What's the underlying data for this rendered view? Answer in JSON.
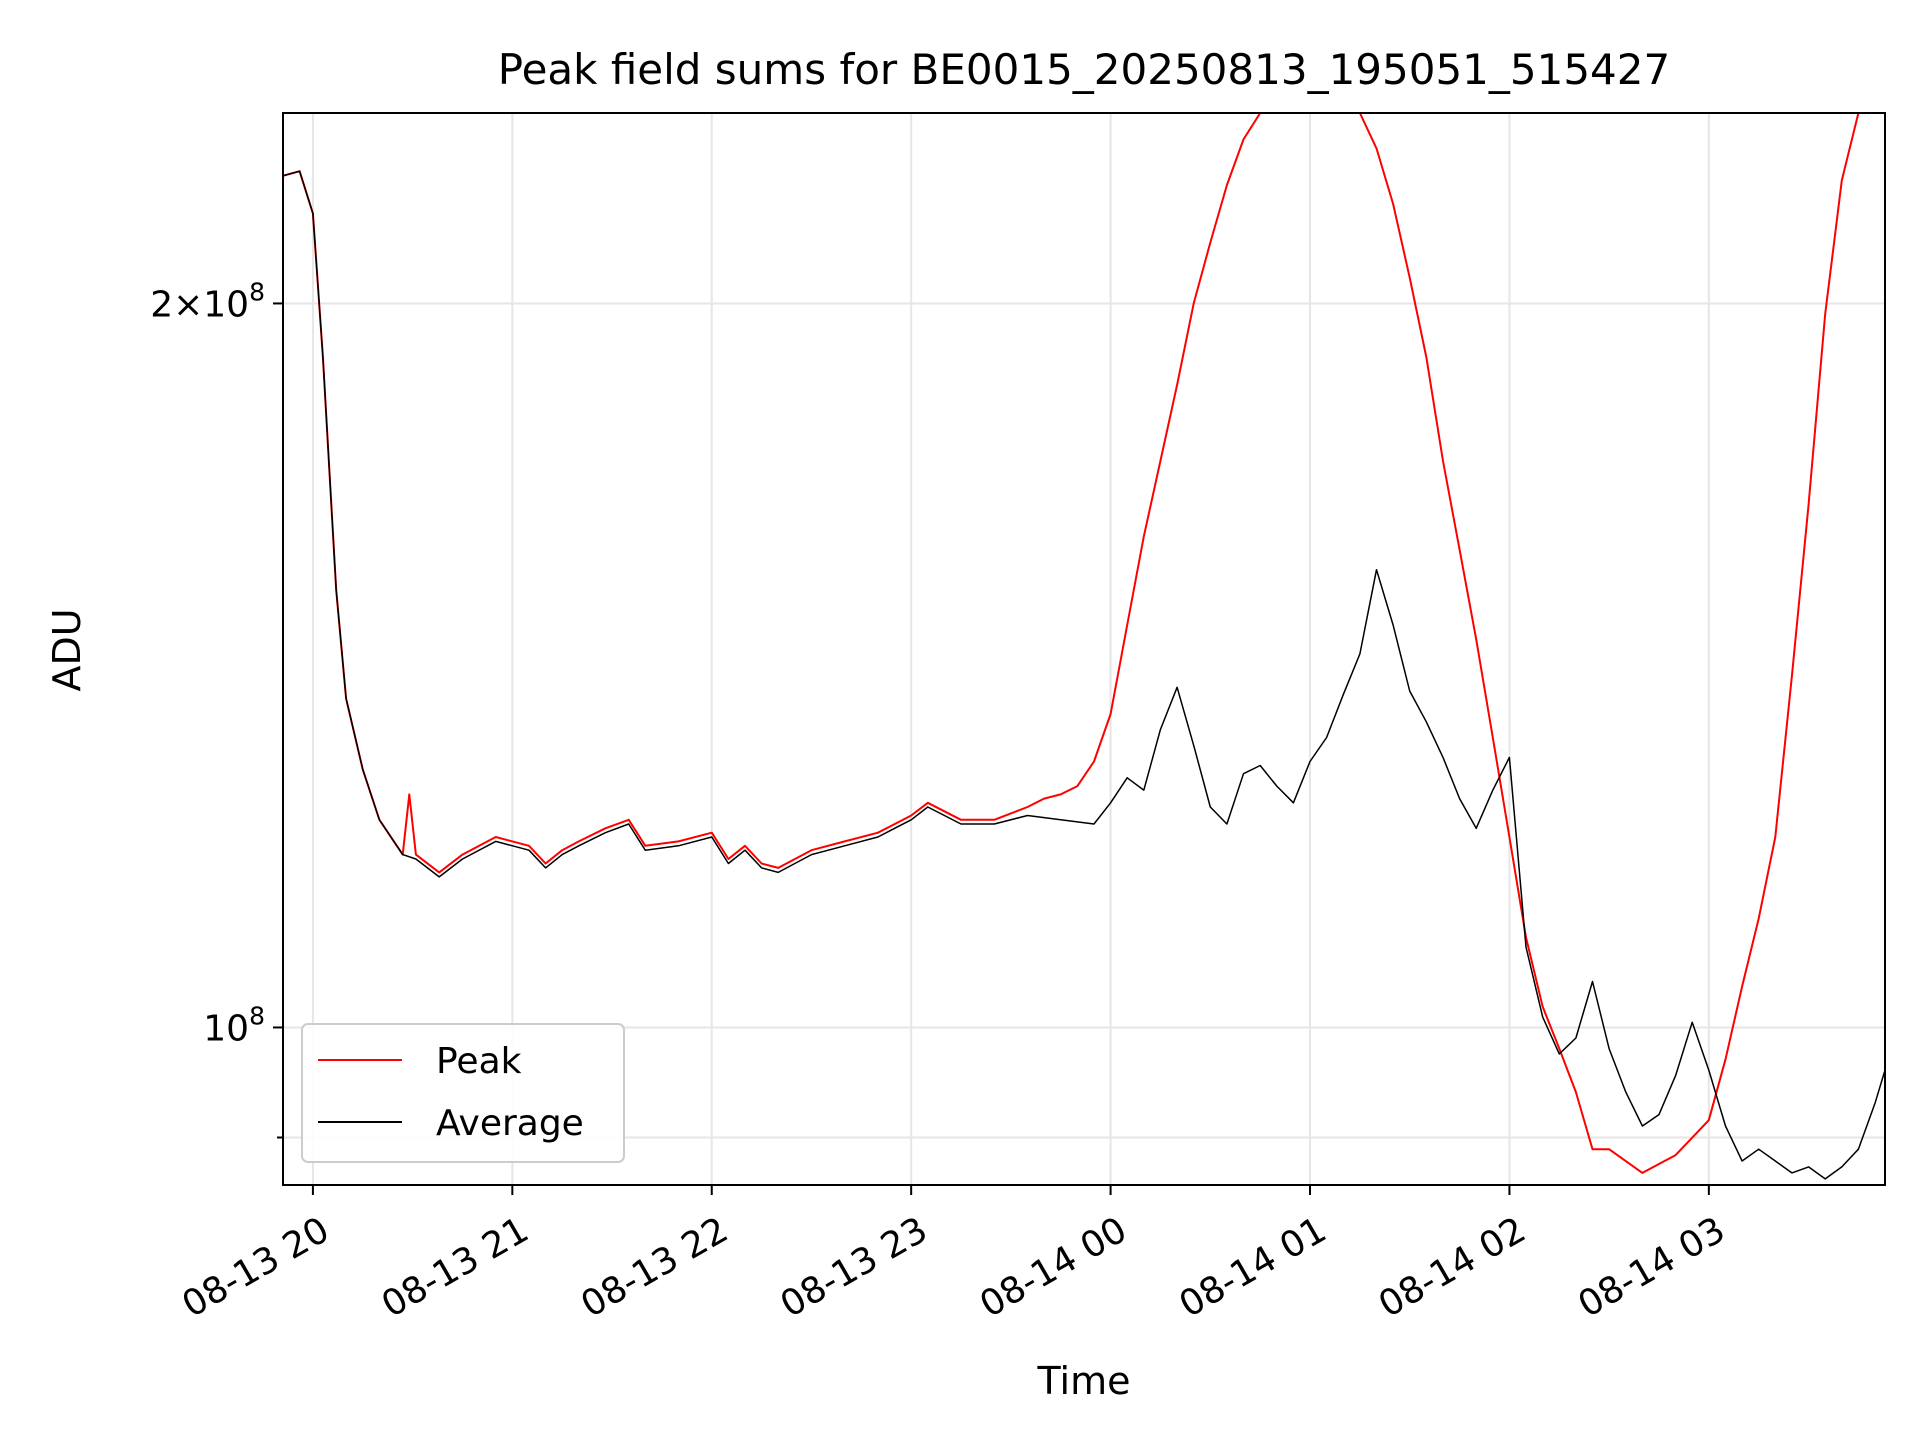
{
  "chart_data": {
    "type": "line",
    "title": "Peak field sums for BE0015_20250813_195051_515427",
    "xlabel": "Time",
    "ylabel": "ADU",
    "yscale": "log",
    "xlim": [
      "2025-08-13 19:51",
      "2025-08-14 03:53"
    ],
    "ylim": [
      86000000,
      240000000
    ],
    "grid": true,
    "legend_position": "lower-left",
    "x_ticks": [
      {
        "value": "2025-08-13 20:00",
        "label": "08-13 20"
      },
      {
        "value": "2025-08-13 21:00",
        "label": "08-13 21"
      },
      {
        "value": "2025-08-13 22:00",
        "label": "08-13 22"
      },
      {
        "value": "2025-08-13 23:00",
        "label": "08-13 23"
      },
      {
        "value": "2025-08-14 00:00",
        "label": "08-14 00"
      },
      {
        "value": "2025-08-14 01:00",
        "label": "08-14 01"
      },
      {
        "value": "2025-08-14 02:00",
        "label": "08-14 02"
      },
      {
        "value": "2025-08-14 03:00",
        "label": "08-14 03"
      }
    ],
    "y_ticks": [
      {
        "value": 100000000,
        "mantissa": "",
        "exponent": "8"
      },
      {
        "value": 200000000,
        "mantissa": "2",
        "exponent": "8"
      }
    ],
    "y_minor_ticks": [
      90000000
    ],
    "series": [
      {
        "name": "Peak",
        "color": "#ff0000",
        "points": [
          [
            "2025-08-13 19:51",
            226000000
          ],
          [
            "2025-08-13 19:56",
            227000000
          ],
          [
            "2025-08-13 20:00",
            218000000
          ],
          [
            "2025-08-13 20:03",
            190000000
          ],
          [
            "2025-08-13 20:07",
            152000000
          ],
          [
            "2025-08-13 20:10",
            137000000
          ],
          [
            "2025-08-13 20:15",
            128000000
          ],
          [
            "2025-08-13 20:20",
            122000000
          ],
          [
            "2025-08-13 20:27",
            118000000
          ],
          [
            "2025-08-13 20:29",
            125000000
          ],
          [
            "2025-08-13 20:31",
            118000000
          ],
          [
            "2025-08-13 20:38",
            116000000
          ],
          [
            "2025-08-13 20:45",
            118000000
          ],
          [
            "2025-08-13 20:55",
            120000000
          ],
          [
            "2025-08-13 21:05",
            119000000
          ],
          [
            "2025-08-13 21:10",
            117000000
          ],
          [
            "2025-08-13 21:15",
            118500000
          ],
          [
            "2025-08-13 21:20",
            119500000
          ],
          [
            "2025-08-13 21:28",
            121000000
          ],
          [
            "2025-08-13 21:35",
            122000000
          ],
          [
            "2025-08-13 21:40",
            119000000
          ],
          [
            "2025-08-13 21:50",
            119500000
          ],
          [
            "2025-08-13 22:00",
            120500000
          ],
          [
            "2025-08-13 22:05",
            117500000
          ],
          [
            "2025-08-13 22:10",
            119000000
          ],
          [
            "2025-08-13 22:15",
            117000000
          ],
          [
            "2025-08-13 22:20",
            116500000
          ],
          [
            "2025-08-13 22:30",
            118500000
          ],
          [
            "2025-08-13 22:40",
            119500000
          ],
          [
            "2025-08-13 22:50",
            120500000
          ],
          [
            "2025-08-13 23:00",
            122500000
          ],
          [
            "2025-08-13 23:05",
            124000000
          ],
          [
            "2025-08-13 23:15",
            122000000
          ],
          [
            "2025-08-13 23:25",
            122000000
          ],
          [
            "2025-08-13 23:35",
            123500000
          ],
          [
            "2025-08-13 23:40",
            124500000
          ],
          [
            "2025-08-13 23:45",
            125000000
          ],
          [
            "2025-08-13 23:50",
            126000000
          ],
          [
            "2025-08-13 23:55",
            129000000
          ],
          [
            "2025-08-14 00:00",
            135000000
          ],
          [
            "2025-08-14 00:05",
            147000000
          ],
          [
            "2025-08-14 00:10",
            160000000
          ],
          [
            "2025-08-14 00:15",
            172000000
          ],
          [
            "2025-08-14 00:20",
            185000000
          ],
          [
            "2025-08-14 00:25",
            200000000
          ],
          [
            "2025-08-14 00:30",
            212000000
          ],
          [
            "2025-08-14 00:35",
            224000000
          ],
          [
            "2025-08-14 00:40",
            234000000
          ],
          [
            "2025-08-14 00:45",
            240000000
          ],
          [
            "2025-08-14 01:15",
            240000000
          ],
          [
            "2025-08-14 01:20",
            232000000
          ],
          [
            "2025-08-14 01:25",
            220000000
          ],
          [
            "2025-08-14 01:30",
            205000000
          ],
          [
            "2025-08-14 01:35",
            190000000
          ],
          [
            "2025-08-14 01:40",
            172000000
          ],
          [
            "2025-08-14 01:45",
            158000000
          ],
          [
            "2025-08-14 01:50",
            145000000
          ],
          [
            "2025-08-14 01:55",
            132000000
          ],
          [
            "2025-08-14 02:00",
            120000000
          ],
          [
            "2025-08-14 02:05",
            109000000
          ],
          [
            "2025-08-14 02:10",
            102000000
          ],
          [
            "2025-08-14 02:15",
            98000000
          ],
          [
            "2025-08-14 02:20",
            94000000
          ],
          [
            "2025-08-14 02:25",
            89000000
          ],
          [
            "2025-08-14 02:30",
            89000000
          ],
          [
            "2025-08-14 02:40",
            87000000
          ],
          [
            "2025-08-14 02:50",
            88500000
          ],
          [
            "2025-08-14 03:00",
            91500000
          ],
          [
            "2025-08-14 03:05",
            97000000
          ],
          [
            "2025-08-14 03:10",
            104000000
          ],
          [
            "2025-08-14 03:15",
            111000000
          ],
          [
            "2025-08-14 03:20",
            120000000
          ],
          [
            "2025-08-14 03:25",
            140000000
          ],
          [
            "2025-08-14 03:30",
            165000000
          ],
          [
            "2025-08-14 03:35",
            198000000
          ],
          [
            "2025-08-14 03:40",
            225000000
          ],
          [
            "2025-08-14 03:45",
            240000000
          ],
          [
            "2025-08-14 03:53",
            240000000
          ]
        ]
      },
      {
        "name": "Average",
        "color": "#000000",
        "points": [
          [
            "2025-08-13 19:51",
            226000000
          ],
          [
            "2025-08-13 19:56",
            227000000
          ],
          [
            "2025-08-13 20:00",
            218000000
          ],
          [
            "2025-08-13 20:03",
            190000000
          ],
          [
            "2025-08-13 20:07",
            152000000
          ],
          [
            "2025-08-13 20:10",
            137000000
          ],
          [
            "2025-08-13 20:15",
            128000000
          ],
          [
            "2025-08-13 20:20",
            122000000
          ],
          [
            "2025-08-13 20:27",
            118000000
          ],
          [
            "2025-08-13 20:31",
            117500000
          ],
          [
            "2025-08-13 20:38",
            115500000
          ],
          [
            "2025-08-13 20:45",
            117500000
          ],
          [
            "2025-08-13 20:55",
            119500000
          ],
          [
            "2025-08-13 21:05",
            118500000
          ],
          [
            "2025-08-13 21:10",
            116500000
          ],
          [
            "2025-08-13 21:15",
            118000000
          ],
          [
            "2025-08-13 21:20",
            119000000
          ],
          [
            "2025-08-13 21:28",
            120500000
          ],
          [
            "2025-08-13 21:35",
            121500000
          ],
          [
            "2025-08-13 21:40",
            118500000
          ],
          [
            "2025-08-13 21:50",
            119000000
          ],
          [
            "2025-08-13 22:00",
            120000000
          ],
          [
            "2025-08-13 22:05",
            117000000
          ],
          [
            "2025-08-13 22:10",
            118500000
          ],
          [
            "2025-08-13 22:15",
            116500000
          ],
          [
            "2025-08-13 22:20",
            116000000
          ],
          [
            "2025-08-13 22:30",
            118000000
          ],
          [
            "2025-08-13 22:40",
            119000000
          ],
          [
            "2025-08-13 22:50",
            120000000
          ],
          [
            "2025-08-13 23:00",
            122000000
          ],
          [
            "2025-08-13 23:05",
            123500000
          ],
          [
            "2025-08-13 23:15",
            121500000
          ],
          [
            "2025-08-13 23:25",
            121500000
          ],
          [
            "2025-08-13 23:35",
            122500000
          ],
          [
            "2025-08-13 23:45",
            122000000
          ],
          [
            "2025-08-13 23:55",
            121500000
          ],
          [
            "2025-08-14 00:00",
            124000000
          ],
          [
            "2025-08-14 00:05",
            127000000
          ],
          [
            "2025-08-14 00:10",
            125500000
          ],
          [
            "2025-08-14 00:15",
            133000000
          ],
          [
            "2025-08-14 00:20",
            138500000
          ],
          [
            "2025-08-14 00:25",
            131000000
          ],
          [
            "2025-08-14 00:30",
            123500000
          ],
          [
            "2025-08-14 00:35",
            121500000
          ],
          [
            "2025-08-14 00:40",
            127500000
          ],
          [
            "2025-08-14 00:45",
            128500000
          ],
          [
            "2025-08-14 00:50",
            126000000
          ],
          [
            "2025-08-14 00:55",
            124000000
          ],
          [
            "2025-08-14 01:00",
            129000000
          ],
          [
            "2025-08-14 01:05",
            132000000
          ],
          [
            "2025-08-14 01:10",
            137500000
          ],
          [
            "2025-08-14 01:15",
            143000000
          ],
          [
            "2025-08-14 01:20",
            155000000
          ],
          [
            "2025-08-14 01:25",
            147000000
          ],
          [
            "2025-08-14 01:30",
            138000000
          ],
          [
            "2025-08-14 01:35",
            134000000
          ],
          [
            "2025-08-14 01:40",
            129500000
          ],
          [
            "2025-08-14 01:45",
            124500000
          ],
          [
            "2025-08-14 01:50",
            121000000
          ],
          [
            "2025-08-14 01:55",
            125500000
          ],
          [
            "2025-08-14 02:00",
            129500000
          ],
          [
            "2025-08-14 02:05",
            108000000
          ],
          [
            "2025-08-14 02:10",
            101000000
          ],
          [
            "2025-08-14 02:15",
            97500000
          ],
          [
            "2025-08-14 02:20",
            99000000
          ],
          [
            "2025-08-14 02:25",
            104500000
          ],
          [
            "2025-08-14 02:30",
            98000000
          ],
          [
            "2025-08-14 02:35",
            94000000
          ],
          [
            "2025-08-14 02:40",
            91000000
          ],
          [
            "2025-08-14 02:45",
            92000000
          ],
          [
            "2025-08-14 02:50",
            95500000
          ],
          [
            "2025-08-14 02:55",
            100500000
          ],
          [
            "2025-08-14 03:00",
            96000000
          ],
          [
            "2025-08-14 03:05",
            91000000
          ],
          [
            "2025-08-14 03:10",
            88000000
          ],
          [
            "2025-08-14 03:15",
            89000000
          ],
          [
            "2025-08-14 03:20",
            88000000
          ],
          [
            "2025-08-14 03:25",
            87000000
          ],
          [
            "2025-08-14 03:30",
            87500000
          ],
          [
            "2025-08-14 03:35",
            86500000
          ],
          [
            "2025-08-14 03:40",
            87500000
          ],
          [
            "2025-08-14 03:45",
            89000000
          ],
          [
            "2025-08-14 03:50",
            93000000
          ],
          [
            "2025-08-14 03:53",
            96000000
          ]
        ]
      }
    ]
  }
}
